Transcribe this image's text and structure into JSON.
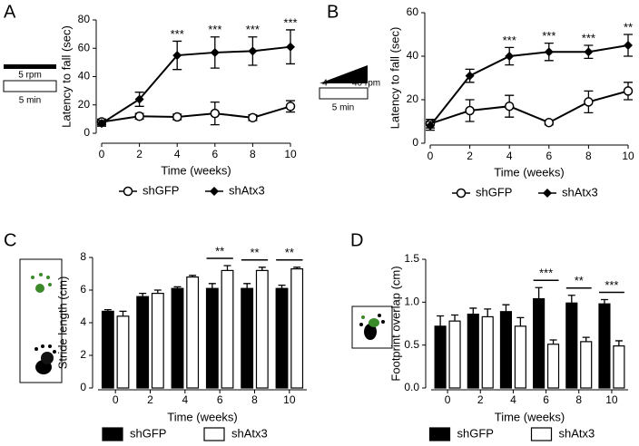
{
  "chart_data": [
    {
      "type": "line",
      "panel": "A",
      "ylabel": "Latency to fall (sec)",
      "xlabel": "Time (weeks)",
      "x": [
        0,
        2,
        4,
        6,
        8,
        10
      ],
      "xlim": [
        0,
        10
      ],
      "xticks": [
        0,
        2,
        4,
        6,
        8,
        10
      ],
      "ylim": [
        0,
        80
      ],
      "yticks": [
        0,
        20,
        40,
        60,
        80
      ],
      "series": [
        {
          "name": "shGFP",
          "color": "#000000",
          "marker": "circle-open",
          "values": [
            8,
            12,
            11.5,
            14,
            11,
            19
          ],
          "errors": [
            2,
            2,
            2,
            8,
            2,
            4
          ]
        },
        {
          "name": "shAtx3",
          "color": "#000000",
          "marker": "diamond",
          "values": [
            7,
            24,
            55,
            57,
            58,
            61
          ],
          "errors": [
            2,
            5,
            10,
            11,
            10,
            12
          ]
        }
      ],
      "significance": [
        null,
        null,
        "***",
        "***",
        "***",
        "***"
      ],
      "protocol": {
        "speed_label": "5 rpm",
        "duration_label": "5 min"
      }
    },
    {
      "type": "line",
      "panel": "B",
      "ylabel": "Latency to fall (sec)",
      "xlabel": "Time (weeks)",
      "x": [
        0,
        2,
        4,
        6,
        8,
        10
      ],
      "xlim": [
        0,
        10
      ],
      "xticks": [
        0,
        2,
        4,
        6,
        8,
        10
      ],
      "ylim": [
        0,
        60
      ],
      "yticks": [
        0,
        20,
        40,
        60
      ],
      "series": [
        {
          "name": "shGFP",
          "color": "#000000",
          "marker": "circle-open",
          "values": [
            9,
            15,
            17,
            9.5,
            19,
            24
          ],
          "errors": [
            2,
            5,
            5,
            1,
            5,
            4
          ]
        },
        {
          "name": "shAtx3",
          "color": "#000000",
          "marker": "diamond",
          "values": [
            8,
            31,
            40,
            42,
            42,
            45
          ],
          "errors": [
            2,
            3,
            4,
            4,
            3,
            5
          ]
        }
      ],
      "significance": [
        null,
        null,
        "***",
        "***",
        "***",
        "**"
      ],
      "protocol": {
        "start_label": "4",
        "end_label": "40 rpm",
        "duration_label": "5 min"
      }
    },
    {
      "type": "bar",
      "panel": "C",
      "ylabel": "Stride length (cm)",
      "xlabel": "Time (weeks)",
      "categories": [
        "0",
        "2",
        "4",
        "6",
        "8",
        "10"
      ],
      "ylim": [
        0,
        8
      ],
      "yticks": [
        0,
        2,
        4,
        6,
        8
      ],
      "series": [
        {
          "name": "shGFP",
          "color": "#000000",
          "values": [
            4.7,
            5.6,
            6.1,
            6.1,
            6.1,
            6.1
          ],
          "errors": [
            0.1,
            0.2,
            0.1,
            0.3,
            0.3,
            0.2
          ]
        },
        {
          "name": "shAtx3",
          "color": "#ffffff",
          "values": [
            4.4,
            5.8,
            6.8,
            7.2,
            7.2,
            7.3
          ],
          "errors": [
            0.3,
            0.2,
            0.1,
            0.3,
            0.2,
            0.1
          ]
        }
      ],
      "significance": [
        null,
        null,
        null,
        "**",
        "**",
        "**"
      ]
    },
    {
      "type": "bar",
      "panel": "D",
      "ylabel": "Footprint overlap (cm)",
      "xlabel": "Time (weeks)",
      "categories": [
        "0",
        "2",
        "4",
        "6",
        "8",
        "10"
      ],
      "ylim": [
        0,
        1.5
      ],
      "yticks": [
        {
          "value": 0,
          "label": "0.0"
        },
        0.5,
        {
          "value": 1,
          "label": "1.0"
        },
        1.5
      ],
      "series": [
        {
          "name": "shGFP",
          "color": "#000000",
          "values": [
            0.72,
            0.86,
            0.89,
            1.04,
            0.99,
            0.98
          ],
          "errors": [
            0.12,
            0.07,
            0.08,
            0.13,
            0.09,
            0.05
          ]
        },
        {
          "name": "shAtx3",
          "color": "#ffffff",
          "values": [
            0.78,
            0.83,
            0.72,
            0.51,
            0.54,
            0.49
          ],
          "errors": [
            0.07,
            0.09,
            0.1,
            0.05,
            0.05,
            0.06
          ]
        }
      ],
      "significance": [
        null,
        null,
        null,
        "***",
        "**",
        "***"
      ]
    }
  ]
}
